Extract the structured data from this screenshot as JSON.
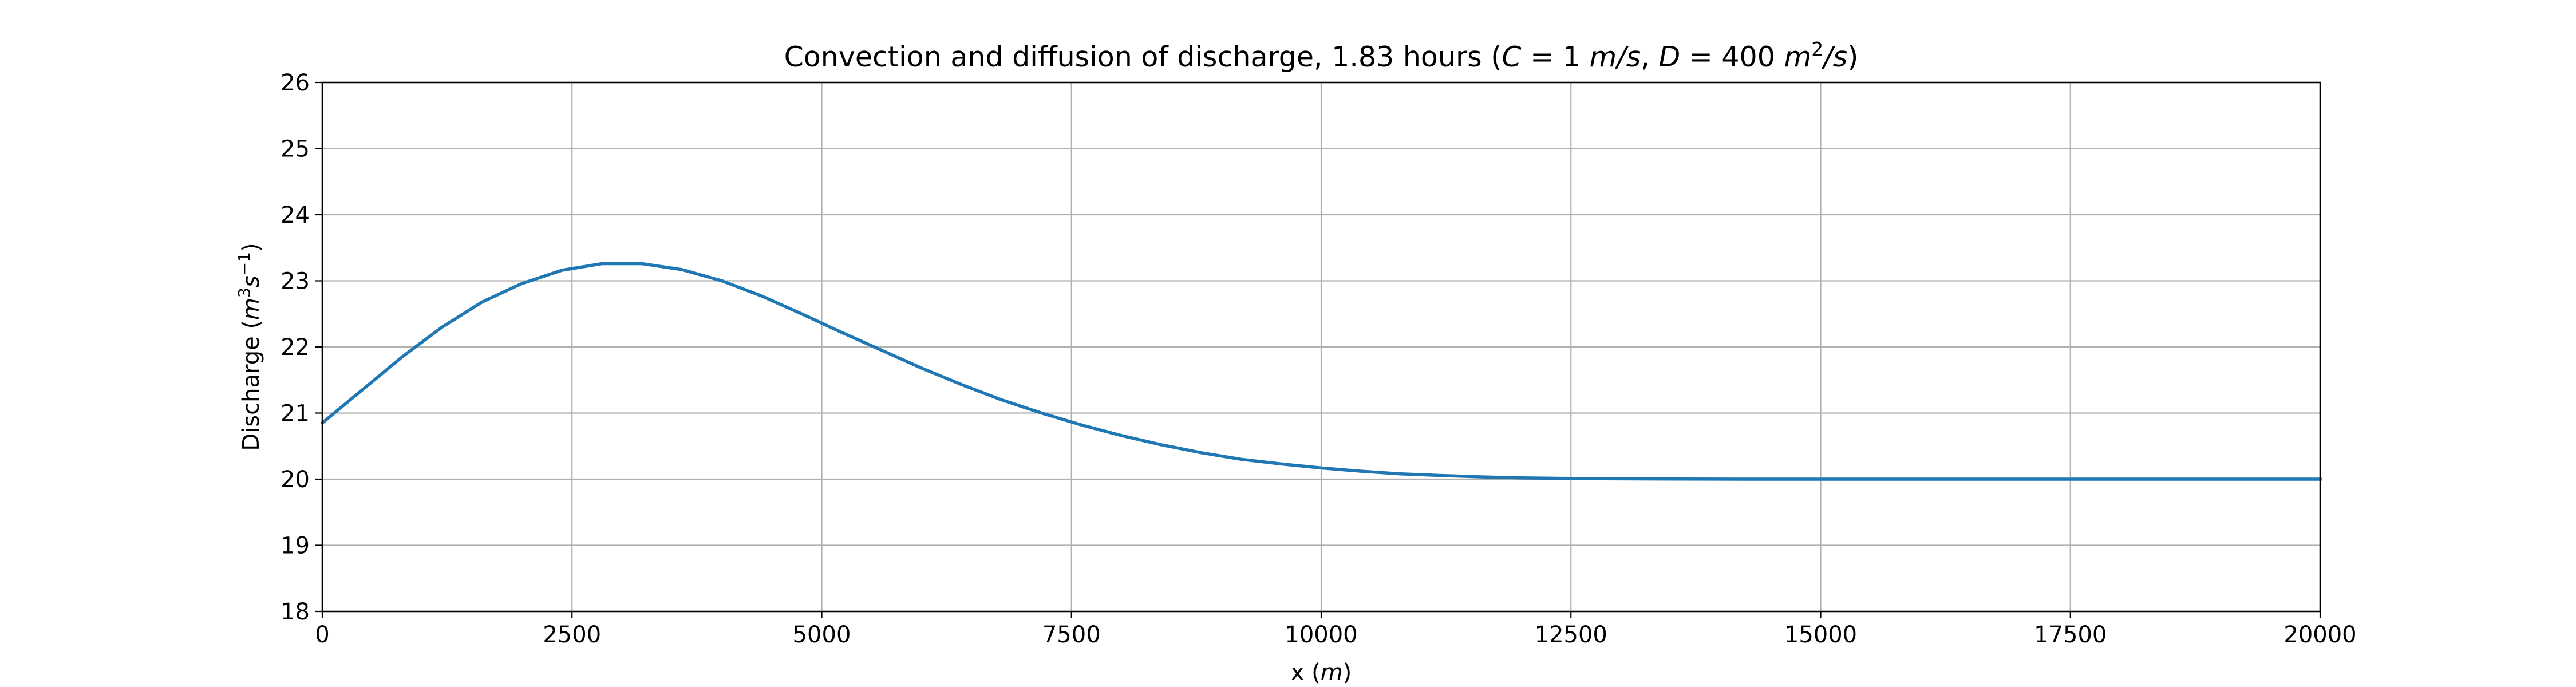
{
  "chart_data": {
    "type": "line",
    "title": {
      "prefix": "Convection and diffusion of discharge, 1.83 hours (",
      "c_symbol": "C",
      "c_eq": " = 1 ",
      "c_unit": "m/s",
      "sep": ", ",
      "d_symbol": "D",
      "d_eq": " = 400 ",
      "d_unit": "m",
      "d_exp": "2",
      "d_unit_tail": "/s",
      "suffix": ")"
    },
    "xlabel": {
      "text": "x (",
      "unit": "m",
      "close": ")"
    },
    "ylabel": {
      "text": "Discharge (",
      "unit_m": "m",
      "exp3": "3",
      "unit_s": "s",
      "exp_neg1": "−1",
      "close": ")"
    },
    "xlim": [
      0,
      20000
    ],
    "ylim": [
      18,
      26
    ],
    "xticks": [
      0,
      2500,
      5000,
      7500,
      10000,
      12500,
      15000,
      17500,
      20000
    ],
    "yticks": [
      18,
      19,
      20,
      21,
      22,
      23,
      24,
      25,
      26
    ],
    "grid": true,
    "line_color": "#1f77b4",
    "series": [
      {
        "x": [
          0,
          400,
          800,
          1200,
          1600,
          2000,
          2400,
          2800,
          3200,
          3600,
          4000,
          4400,
          4800,
          5200,
          5600,
          6000,
          6400,
          6800,
          7200,
          7600,
          8000,
          8400,
          8800,
          9200,
          9600,
          10000,
          10400,
          10800,
          11200,
          11600,
          12000,
          12400,
          12800,
          13600,
          14400,
          15200,
          16000,
          17000,
          18000,
          19000,
          20000
        ],
        "y": [
          20.85,
          21.35,
          21.85,
          22.3,
          22.68,
          22.96,
          23.16,
          23.26,
          23.26,
          23.17,
          23.0,
          22.77,
          22.5,
          22.22,
          21.95,
          21.68,
          21.43,
          21.2,
          21.0,
          20.82,
          20.66,
          20.52,
          20.4,
          20.3,
          20.23,
          20.17,
          20.12,
          20.08,
          20.055,
          20.035,
          20.02,
          20.012,
          20.007,
          20.002,
          20.0,
          20.0,
          20.0,
          20.0,
          20.0,
          20.0,
          20.0
        ]
      }
    ]
  }
}
